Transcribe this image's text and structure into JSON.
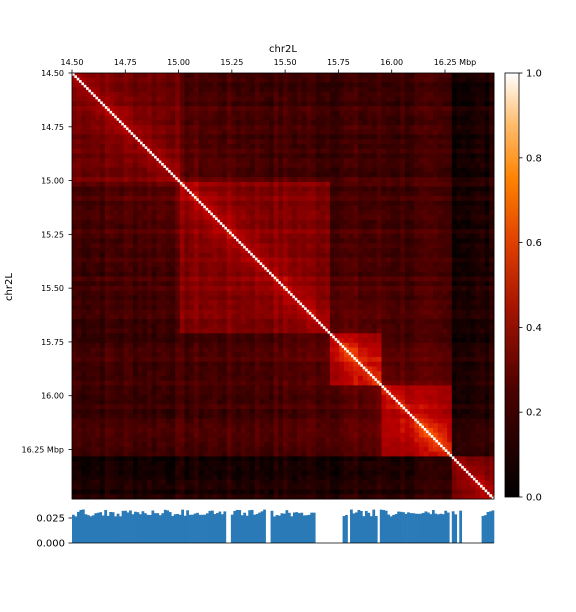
{
  "chart_data": [
    {
      "type": "heatmap",
      "title": "",
      "xlabel": "chr2L",
      "ylabel": "chr2L",
      "xlim": [
        14.5,
        16.48
      ],
      "ylim": [
        14.5,
        16.48
      ],
      "x_ticks": [
        {
          "value": 14.5,
          "label": "14.50"
        },
        {
          "value": 14.75,
          "label": "14.75"
        },
        {
          "value": 15.0,
          "label": "15.00"
        },
        {
          "value": 15.25,
          "label": "15.25"
        },
        {
          "value": 15.5,
          "label": "15.50"
        },
        {
          "value": 15.75,
          "label": "15.75"
        },
        {
          "value": 16.0,
          "label": "16.00"
        },
        {
          "value": 16.25,
          "label": "16.25  Mbp"
        }
      ],
      "y_ticks": [
        {
          "value": 14.5,
          "label": "14.50"
        },
        {
          "value": 14.75,
          "label": "14.75"
        },
        {
          "value": 15.0,
          "label": "15.00"
        },
        {
          "value": 15.25,
          "label": "15.25"
        },
        {
          "value": 15.5,
          "label": "15.50"
        },
        {
          "value": 15.75,
          "label": "15.75"
        },
        {
          "value": 16.0,
          "label": "16.00"
        },
        {
          "value": 16.25,
          "label": "16.25  Mbp"
        }
      ],
      "colormap": "gist_heat",
      "colorbar": {
        "range": [
          0,
          1
        ],
        "ticks": [
          {
            "value": 0.0,
            "label": "0.0"
          },
          {
            "value": 0.2,
            "label": "0.2"
          },
          {
            "value": 0.4,
            "label": "0.4"
          },
          {
            "value": 0.6,
            "label": "0.6"
          },
          {
            "value": 0.8,
            "label": "0.8"
          },
          {
            "value": 1.0,
            "label": "1.0"
          }
        ]
      },
      "domains": [
        {
          "start": 14.5,
          "end": 15.0,
          "value": 0.3
        },
        {
          "start": 15.0,
          "end": 15.72,
          "value": 0.34
        },
        {
          "start": 15.72,
          "end": 15.95,
          "value": 0.44
        },
        {
          "start": 15.95,
          "end": 16.28,
          "value": 0.42
        },
        {
          "start": 16.28,
          "end": 16.48,
          "value": 0.3
        }
      ],
      "background_value": 0.16,
      "diagonal_value": 1.0
    },
    {
      "type": "bar",
      "title": "",
      "xlim": [
        14.5,
        16.48
      ],
      "ylim": [
        0,
        0.04
      ],
      "y_ticks": [
        {
          "value": 0.0,
          "label": "0.000"
        },
        {
          "value": 0.025,
          "label": "0.025"
        }
      ],
      "color": "#2a7ab8",
      "typical_value": 0.03,
      "gaps": [
        [
          15.22,
          15.24
        ],
        [
          15.41,
          15.43
        ],
        [
          15.64,
          15.77
        ],
        [
          15.79,
          15.8
        ],
        [
          15.93,
          15.95
        ],
        [
          16.27,
          16.28
        ],
        [
          16.3,
          16.32
        ],
        [
          16.33,
          16.42
        ]
      ]
    }
  ]
}
